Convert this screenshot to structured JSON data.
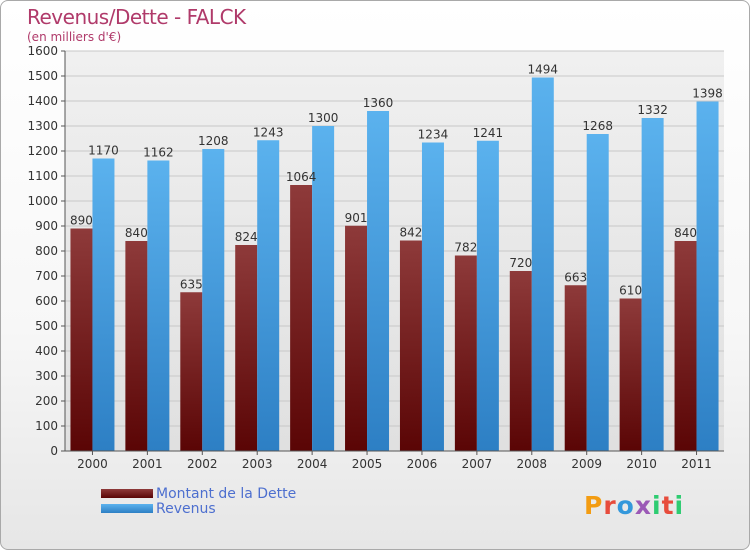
{
  "title": "Revenus/Dette - FALCK",
  "subtitle": "(en milliers d'€)",
  "brand": {
    "letters": [
      "P",
      "r",
      "o",
      "x",
      "i",
      "t",
      "i"
    ],
    "colors": [
      "#f39c12",
      "#e74c3c",
      "#3498db",
      "#9b59b6",
      "#2ecc71",
      "#e74c3c",
      "#2ecc71"
    ]
  },
  "colors": {
    "dette": "#7a1f1f",
    "revenus": "#4aa6e6",
    "title": "#b03a6a",
    "legend_text": "#4d6fcf"
  },
  "chart_data": {
    "type": "bar",
    "title": "Revenus/Dette - FALCK",
    "subtitle": "(en milliers d'€)",
    "xlabel": "",
    "ylabel": "",
    "ylim": [
      0,
      1600
    ],
    "yticks": [
      0,
      100,
      200,
      300,
      400,
      500,
      600,
      700,
      800,
      900,
      1000,
      1100,
      1200,
      1300,
      1400,
      1500,
      1600
    ],
    "grid": true,
    "legend_position": "bottom-left",
    "categories": [
      "2000",
      "2001",
      "2002",
      "2003",
      "2004",
      "2005",
      "2006",
      "2007",
      "2008",
      "2009",
      "2010",
      "2011"
    ],
    "series": [
      {
        "name": "Montant de la Dette",
        "values": [
          890,
          840,
          635,
          824,
          1064,
          901,
          842,
          782,
          720,
          663,
          610,
          840
        ]
      },
      {
        "name": "Revenus",
        "values": [
          1170,
          1162,
          1208,
          1243,
          1300,
          1360,
          1234,
          1241,
          1494,
          1268,
          1332,
          1398
        ]
      }
    ]
  }
}
